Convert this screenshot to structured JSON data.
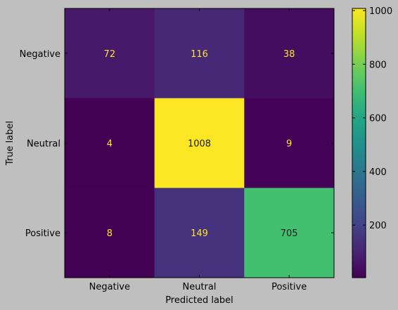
{
  "chart_data": {
    "type": "heatmap",
    "title": "",
    "xlabel": "Predicted label",
    "ylabel": "True label",
    "x_categories": [
      "Negative",
      "Neutral",
      "Positive"
    ],
    "y_categories": [
      "Negative",
      "Neutral",
      "Positive"
    ],
    "values": [
      [
        72,
        116,
        38
      ],
      [
        4,
        1008,
        9
      ],
      [
        8,
        149,
        705
      ]
    ],
    "colorbar": {
      "colormap": "viridis",
      "range": [
        4,
        1008
      ],
      "ticks": [
        200,
        400,
        600,
        800,
        1000
      ]
    },
    "text_colors": {
      "on_dark": "#fde725",
      "on_light": "#1a1a1a"
    },
    "background_color": "#bfbfbf"
  }
}
